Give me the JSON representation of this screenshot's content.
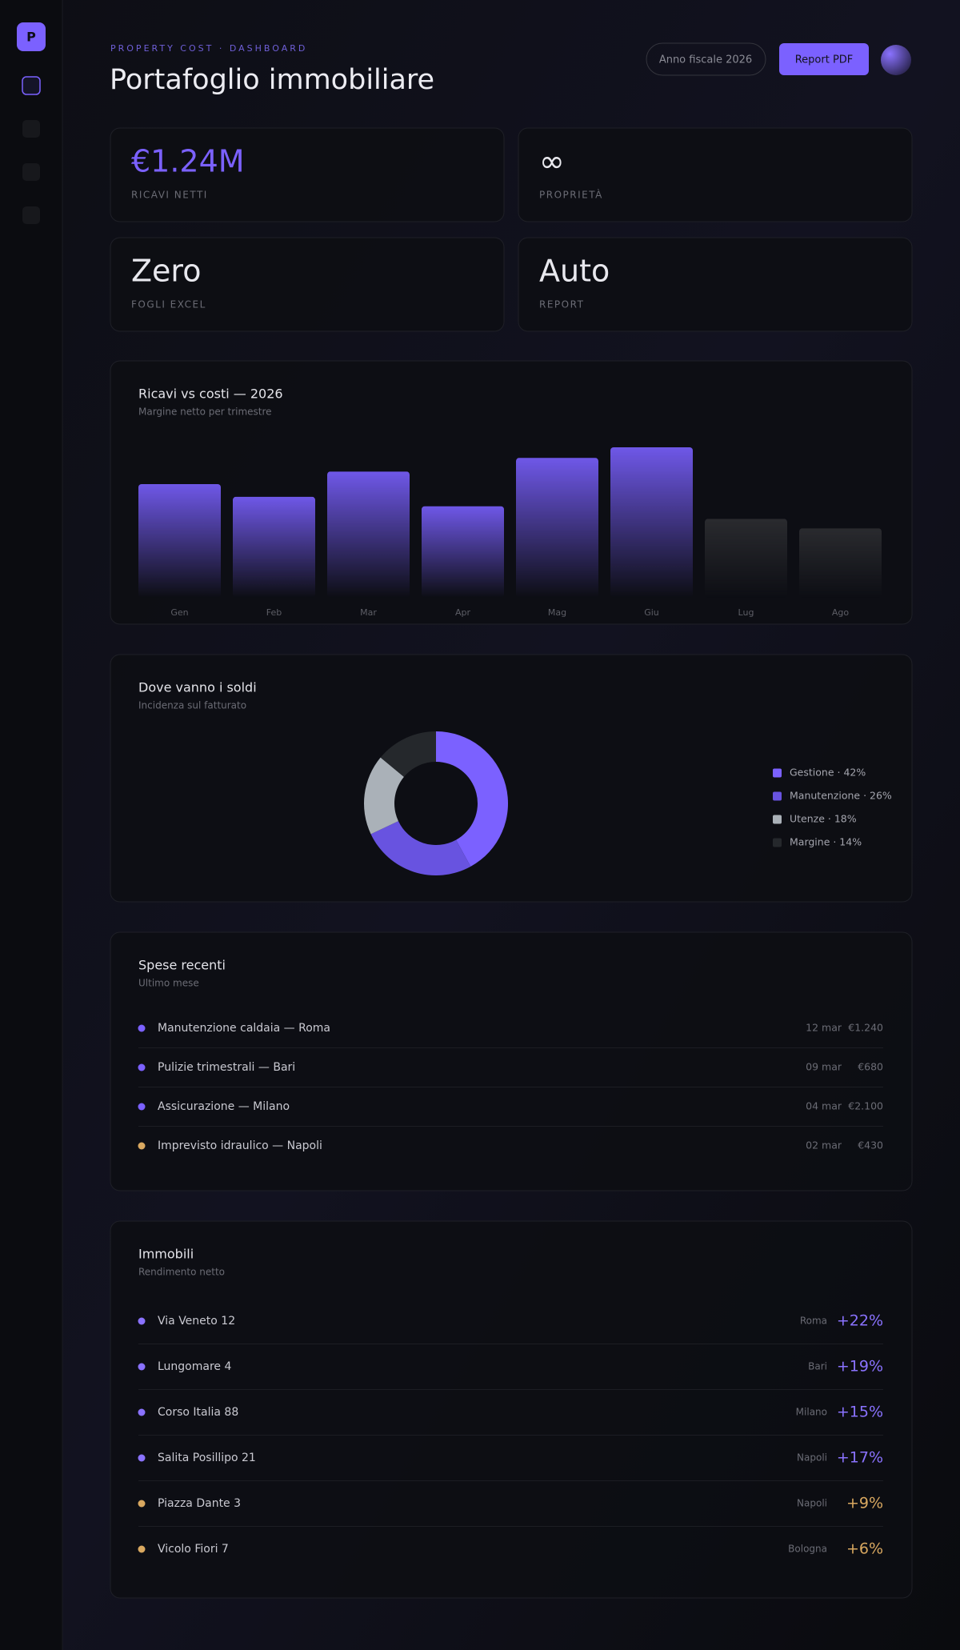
{
  "header": {
    "eyebrow": "PROPERTY COST · DASHBOARD",
    "title": "Portafoglio immobiliare",
    "fiscal_year": "Anno fiscale 2026",
    "report_button": "Report PDF",
    "logo": "P"
  },
  "kpis": [
    {
      "value": "€1.24M",
      "label": "RICAVI NETTI",
      "color": "#7b61ff"
    },
    {
      "value": "∞",
      "label": "PROPRIETÀ",
      "color": "#e8e8ee"
    },
    {
      "value": "Zero",
      "label": "FOGLI EXCEL",
      "color": "#e8e8ee"
    },
    {
      "value": "Auto",
      "label": "REPORT",
      "color": "#e8e8ee"
    }
  ],
  "chart_data": [
    {
      "type": "bar",
      "title": "Ricavi vs costi — 2026",
      "subtitle": "Margine netto per trimestre",
      "categories": [
        "Gen",
        "Feb",
        "Mar",
        "Apr",
        "Mag",
        "Giu",
        "Lug",
        "Ago"
      ],
      "values": [
        108,
        96,
        120,
        87,
        133,
        143,
        75,
        66
      ],
      "colors": [
        "#6f58e8",
        "#6f58e8",
        "#6f58e8",
        "#6f58e8",
        "#6f58e8",
        "#6f58e8",
        "#2a2b2f",
        "#2a2b2f"
      ]
    },
    {
      "type": "pie",
      "title": "Dove vanno i soldi",
      "subtitle": "Incidenza sul fatturato",
      "categories": [
        "Gestione",
        "Manutenzione",
        "Utenze",
        "Margine"
      ],
      "values": [
        42,
        26,
        18,
        14
      ],
      "value_labels": [
        "Gestione · 42%",
        "Manutenzione · 26%",
        "Utenze · 18%",
        "Margine · 14%"
      ],
      "colors": [
        "#7b61ff",
        "#6853e0",
        "#aab1b8",
        "#25282c"
      ]
    }
  ],
  "expenses": {
    "title": "Spese recenti",
    "subtitle": "Ultimo mese",
    "rows": [
      {
        "name": "Manutenzione caldaia — Roma",
        "date": "12 mar",
        "amount": "€1.240",
        "color": "#7b61ff"
      },
      {
        "name": "Pulizie trimestrali — Bari",
        "date": "09 mar",
        "amount": "€680",
        "color": "#7b61ff"
      },
      {
        "name": "Assicurazione — Milano",
        "date": "04 mar",
        "amount": "€2.100",
        "color": "#7b61ff"
      },
      {
        "name": "Imprevisto idraulico — Napoli",
        "date": "02 mar",
        "amount": "€430",
        "color": "#d9a860"
      }
    ]
  },
  "properties": {
    "title": "Immobili",
    "subtitle": "Rendimento netto",
    "rows": [
      {
        "name": "Via Veneto 12",
        "city": "Roma",
        "yield": "+22%",
        "color": "#8a72ff"
      },
      {
        "name": "Lungomare 4",
        "city": "Bari",
        "yield": "+19%",
        "color": "#8a72ff"
      },
      {
        "name": "Corso Italia 88",
        "city": "Milano",
        "yield": "+15%",
        "color": "#8a72ff"
      },
      {
        "name": "Salita Posillipo 21",
        "city": "Napoli",
        "yield": "+17%",
        "color": "#8a72ff"
      },
      {
        "name": "Piazza Dante 3",
        "city": "Napoli",
        "yield": "+9%",
        "color": "#d9a860"
      },
      {
        "name": "Vicolo Fiori 7",
        "city": "Bologna",
        "yield": "+6%",
        "color": "#d9a860"
      }
    ]
  }
}
